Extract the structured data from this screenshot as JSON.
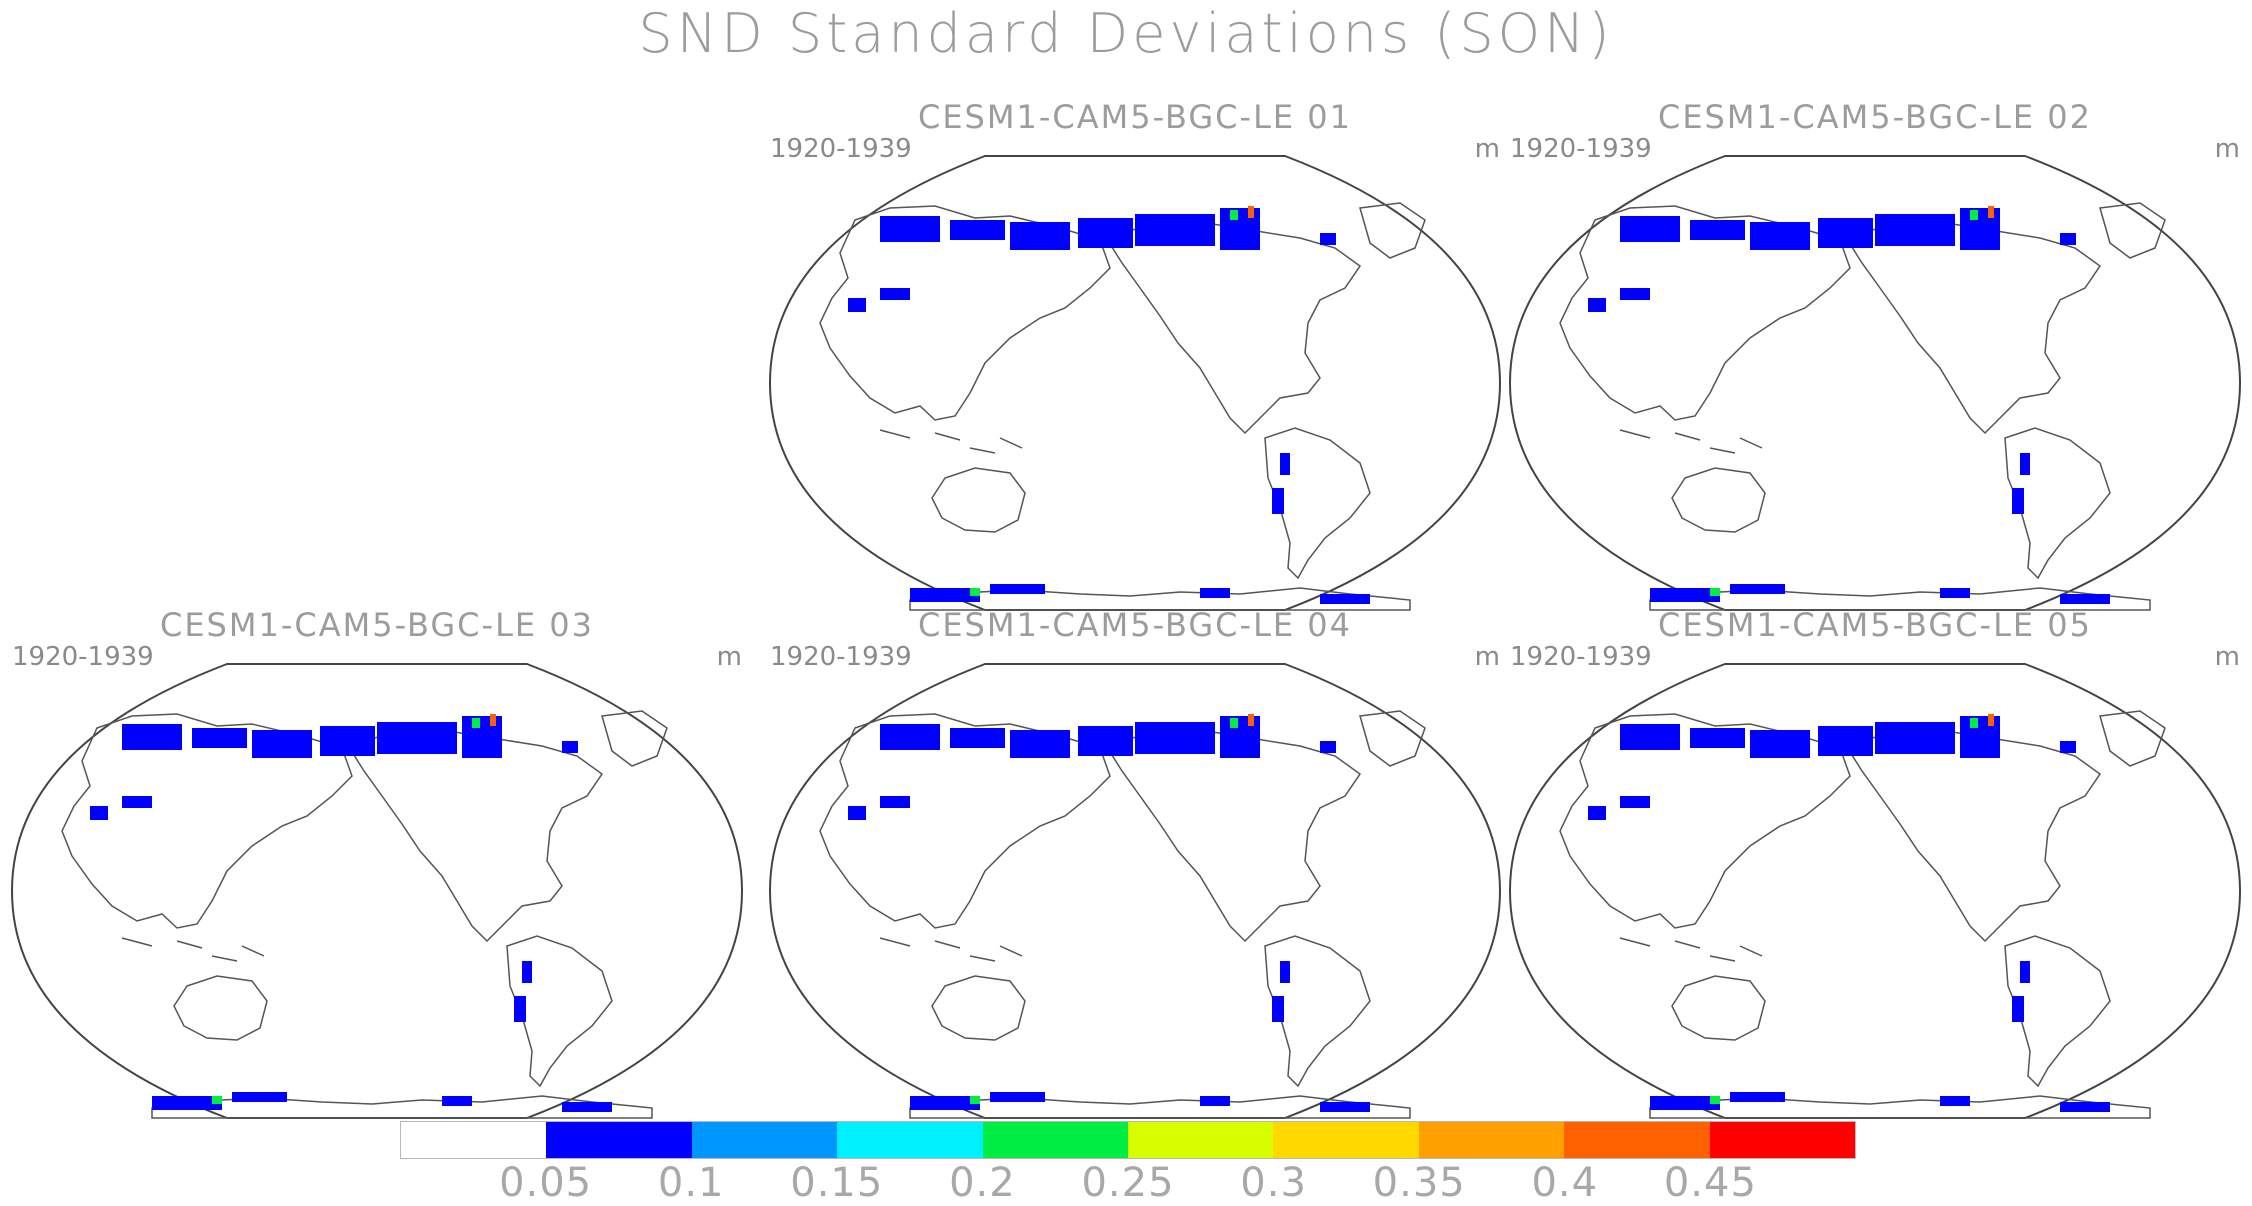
{
  "title": "SND Standard Deviations (SON)",
  "panels": [
    {
      "title": "CESM1-CAM5-BGC-LE 01",
      "years": "1920-1939",
      "unit": "m"
    },
    {
      "title": "CESM1-CAM5-BGC-LE 02",
      "years": "1920-1939",
      "unit": "m"
    },
    {
      "title": "CESM1-CAM5-BGC-LE 03",
      "years": "1920-1939",
      "unit": "m"
    },
    {
      "title": "CESM1-CAM5-BGC-LE 04",
      "years": "1920-1939",
      "unit": "m"
    },
    {
      "title": "CESM1-CAM5-BGC-LE 05",
      "years": "1920-1939",
      "unit": "m"
    }
  ],
  "colorbar": {
    "labels": [
      "0.05",
      "0.1",
      "0.15",
      "0.2",
      "0.25",
      "0.3",
      "0.35",
      "0.4",
      "0.45"
    ],
    "colors": [
      "#ffffff",
      "#0000ff",
      "#0096ff",
      "#00f0ff",
      "#00ee44",
      "#d8ff00",
      "#ffd800",
      "#ffa000",
      "#ff6000",
      "#ff0000"
    ]
  }
}
